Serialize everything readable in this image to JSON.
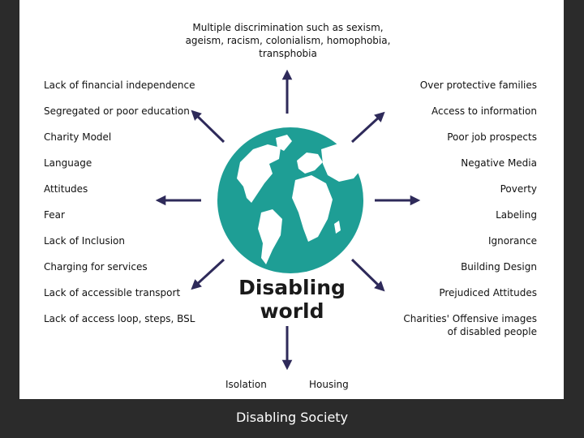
{
  "top_text": "Multiple discrimination such as sexism,\nageism, racism, colonialism, homophobia,\ntransphobia",
  "globe_title": "Disabling\nworld",
  "left_items": [
    "Lack of financial independence",
    "Segregated or poor education",
    "Charity Model",
    "Language",
    "Attitudes",
    "Fear",
    "Lack of Inclusion",
    "Charging for services",
    "Lack of accessible transport",
    "Lack of access loop, steps, BSL"
  ],
  "right_items": [
    "Over protective families",
    "Access to information",
    "Poor job prospects",
    "Negative Media",
    "Poverty",
    "Labeling",
    "Ignorance",
    "Building Design",
    "Prejudiced Attitudes",
    "Charities' Offensive images\nof disabled people"
  ],
  "bottom_items": [
    "Isolation",
    "Housing"
  ],
  "caption": "Disabling Society",
  "colors": {
    "globe_ocean": "#1e9e95",
    "arrow": "#2e2a5a",
    "background": "#2b2b2b"
  }
}
